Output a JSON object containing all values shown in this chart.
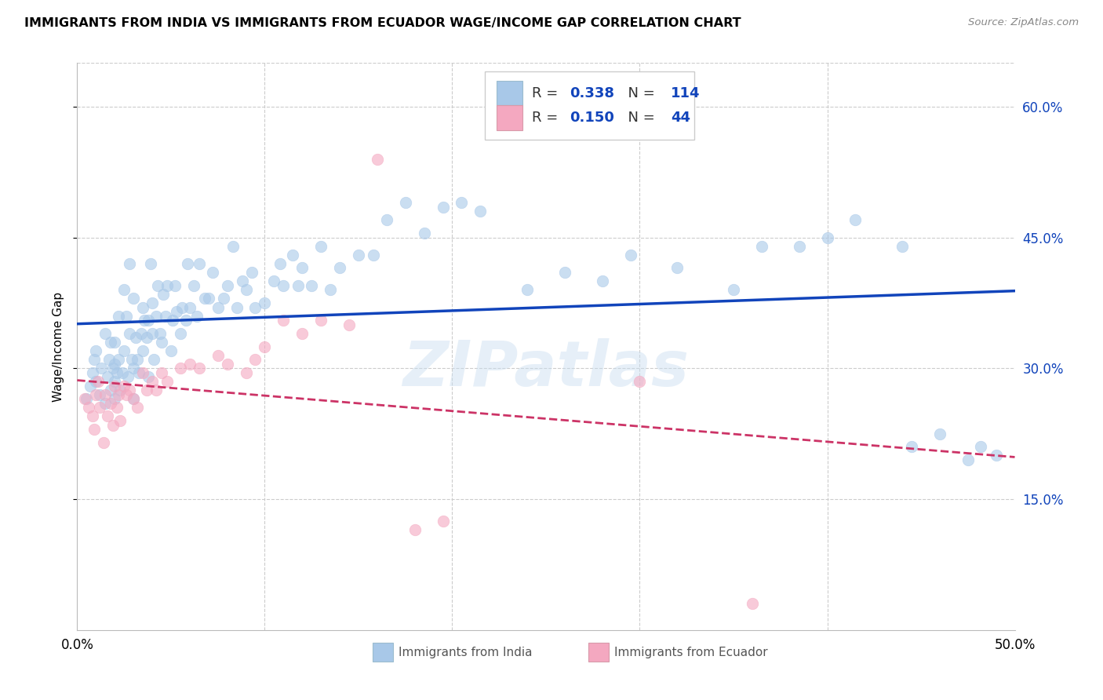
{
  "title": "IMMIGRANTS FROM INDIA VS IMMIGRANTS FROM ECUADOR WAGE/INCOME GAP CORRELATION CHART",
  "source": "Source: ZipAtlas.com",
  "ylabel": "Wage/Income Gap",
  "x_min": 0.0,
  "x_max": 0.5,
  "y_min": 0.0,
  "y_max": 0.65,
  "y_ticks_right": [
    0.15,
    0.3,
    0.45,
    0.6
  ],
  "y_tick_labels_right": [
    "15.0%",
    "30.0%",
    "45.0%",
    "60.0%"
  ],
  "india_R": 0.338,
  "india_N": 114,
  "ecuador_R": 0.15,
  "ecuador_N": 44,
  "india_color": "#a8c8e8",
  "ecuador_color": "#f4a8c0",
  "india_line_color": "#1144bb",
  "ecuador_line_color": "#cc3366",
  "watermark": "ZIPatlas",
  "india_scatter_x": [
    0.005,
    0.007,
    0.008,
    0.009,
    0.01,
    0.01,
    0.012,
    0.013,
    0.015,
    0.015,
    0.016,
    0.017,
    0.018,
    0.018,
    0.019,
    0.02,
    0.02,
    0.02,
    0.02,
    0.021,
    0.022,
    0.022,
    0.023,
    0.024,
    0.025,
    0.025,
    0.026,
    0.027,
    0.028,
    0.028,
    0.029,
    0.03,
    0.03,
    0.03,
    0.031,
    0.032,
    0.033,
    0.034,
    0.035,
    0.035,
    0.036,
    0.037,
    0.038,
    0.038,
    0.039,
    0.04,
    0.04,
    0.041,
    0.042,
    0.043,
    0.044,
    0.045,
    0.046,
    0.047,
    0.048,
    0.05,
    0.051,
    0.052,
    0.053,
    0.055,
    0.056,
    0.058,
    0.059,
    0.06,
    0.062,
    0.064,
    0.065,
    0.068,
    0.07,
    0.072,
    0.075,
    0.078,
    0.08,
    0.083,
    0.085,
    0.088,
    0.09,
    0.093,
    0.095,
    0.1,
    0.105,
    0.108,
    0.11,
    0.115,
    0.118,
    0.12,
    0.125,
    0.13,
    0.135,
    0.14,
    0.15,
    0.158,
    0.165,
    0.175,
    0.185,
    0.195,
    0.205,
    0.215,
    0.24,
    0.26,
    0.28,
    0.295,
    0.32,
    0.35,
    0.365,
    0.385,
    0.4,
    0.415,
    0.44,
    0.445,
    0.46,
    0.475,
    0.482,
    0.49
  ],
  "india_scatter_y": [
    0.265,
    0.28,
    0.295,
    0.31,
    0.285,
    0.32,
    0.27,
    0.3,
    0.26,
    0.34,
    0.29,
    0.31,
    0.275,
    0.33,
    0.3,
    0.265,
    0.285,
    0.305,
    0.33,
    0.295,
    0.31,
    0.36,
    0.275,
    0.295,
    0.32,
    0.39,
    0.36,
    0.29,
    0.34,
    0.42,
    0.31,
    0.265,
    0.3,
    0.38,
    0.335,
    0.31,
    0.295,
    0.34,
    0.32,
    0.37,
    0.355,
    0.335,
    0.29,
    0.355,
    0.42,
    0.34,
    0.375,
    0.31,
    0.36,
    0.395,
    0.34,
    0.33,
    0.385,
    0.36,
    0.395,
    0.32,
    0.355,
    0.395,
    0.365,
    0.34,
    0.37,
    0.355,
    0.42,
    0.37,
    0.395,
    0.36,
    0.42,
    0.38,
    0.38,
    0.41,
    0.37,
    0.38,
    0.395,
    0.44,
    0.37,
    0.4,
    0.39,
    0.41,
    0.37,
    0.375,
    0.4,
    0.42,
    0.395,
    0.43,
    0.395,
    0.415,
    0.395,
    0.44,
    0.39,
    0.415,
    0.43,
    0.43,
    0.47,
    0.49,
    0.455,
    0.485,
    0.49,
    0.48,
    0.39,
    0.41,
    0.4,
    0.43,
    0.415,
    0.39,
    0.44,
    0.44,
    0.45,
    0.47,
    0.44,
    0.21,
    0.225,
    0.195,
    0.21,
    0.2
  ],
  "ecuador_scatter_x": [
    0.004,
    0.006,
    0.008,
    0.009,
    0.01,
    0.011,
    0.012,
    0.014,
    0.015,
    0.016,
    0.018,
    0.019,
    0.02,
    0.021,
    0.022,
    0.023,
    0.025,
    0.026,
    0.028,
    0.03,
    0.032,
    0.035,
    0.037,
    0.04,
    0.042,
    0.045,
    0.048,
    0.055,
    0.06,
    0.065,
    0.075,
    0.08,
    0.09,
    0.095,
    0.1,
    0.11,
    0.12,
    0.13,
    0.145,
    0.16,
    0.18,
    0.195,
    0.3,
    0.36
  ],
  "ecuador_scatter_y": [
    0.265,
    0.255,
    0.245,
    0.23,
    0.27,
    0.285,
    0.255,
    0.215,
    0.27,
    0.245,
    0.26,
    0.235,
    0.28,
    0.255,
    0.27,
    0.24,
    0.28,
    0.27,
    0.275,
    0.265,
    0.255,
    0.295,
    0.275,
    0.285,
    0.275,
    0.295,
    0.285,
    0.3,
    0.305,
    0.3,
    0.315,
    0.305,
    0.295,
    0.31,
    0.325,
    0.355,
    0.34,
    0.355,
    0.35,
    0.54,
    0.115,
    0.125,
    0.285,
    0.03
  ]
}
